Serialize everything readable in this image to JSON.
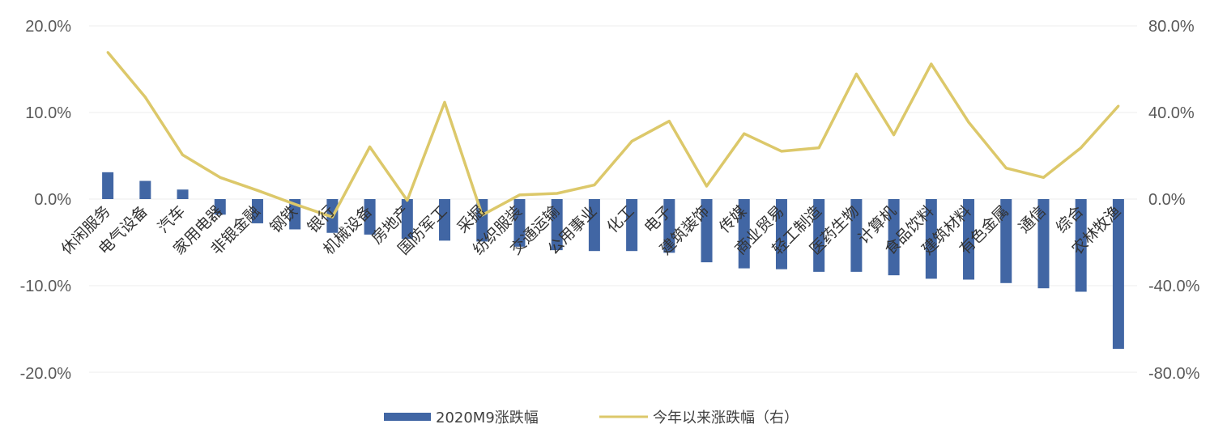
{
  "chart_data": {
    "type": "bar",
    "categories": [
      "休闲服务",
      "电气设备",
      "汽车",
      "家用电器",
      "非银金融",
      "钢铁",
      "银行",
      "机械设备",
      "房地产",
      "国防军工",
      "采掘",
      "纺织服装",
      "交通运输",
      "公用事业",
      "化工",
      "电子",
      "建筑装饰",
      "传媒",
      "商业贸易",
      "轻工制造",
      "医药生物",
      "计算机",
      "食品饮料",
      "建筑材料",
      "有色金属",
      "通信",
      "综合",
      "农林牧渔"
    ],
    "series": [
      {
        "name": "2020M9涨跌幅",
        "type": "bar",
        "axis": "left",
        "color": "#4166a4",
        "values": [
          3.1,
          2.1,
          1.1,
          -1.8,
          -2.8,
          -3.5,
          -3.9,
          -4.1,
          -4.6,
          -4.8,
          -4.9,
          -5.5,
          -5.9,
          -6.0,
          -6.0,
          -6.2,
          -7.3,
          -8.0,
          -8.1,
          -8.4,
          -8.4,
          -8.8,
          -9.2,
          -9.3,
          -9.7,
          -10.3,
          -10.7,
          -17.3
        ]
      },
      {
        "name": "今年以来涨跌幅（右）",
        "type": "line",
        "axis": "right",
        "color": "#dcc86a",
        "values": [
          67.8,
          47.1,
          20.4,
          10.0,
          4.0,
          -2.4,
          -8.3,
          24.1,
          -0.6,
          44.7,
          -7.4,
          1.9,
          2.6,
          6.5,
          26.7,
          36.0,
          6.0,
          30.2,
          22.1,
          23.7,
          57.8,
          29.7,
          62.4,
          35.5,
          14.3,
          10.0,
          23.7,
          43.0
        ]
      }
    ],
    "ylim_left": [
      -20,
      20
    ],
    "ylim_right": [
      -80,
      80
    ],
    "yticks_left": [
      "20.0%",
      "10.0%",
      "0.0%",
      "-10.0%",
      "-20.0%"
    ],
    "yticks_right": [
      "80.0%",
      "40.0%",
      "0.0%",
      "-40.0%",
      "-80.0%"
    ],
    "grid": true,
    "legend_position": "bottom"
  }
}
